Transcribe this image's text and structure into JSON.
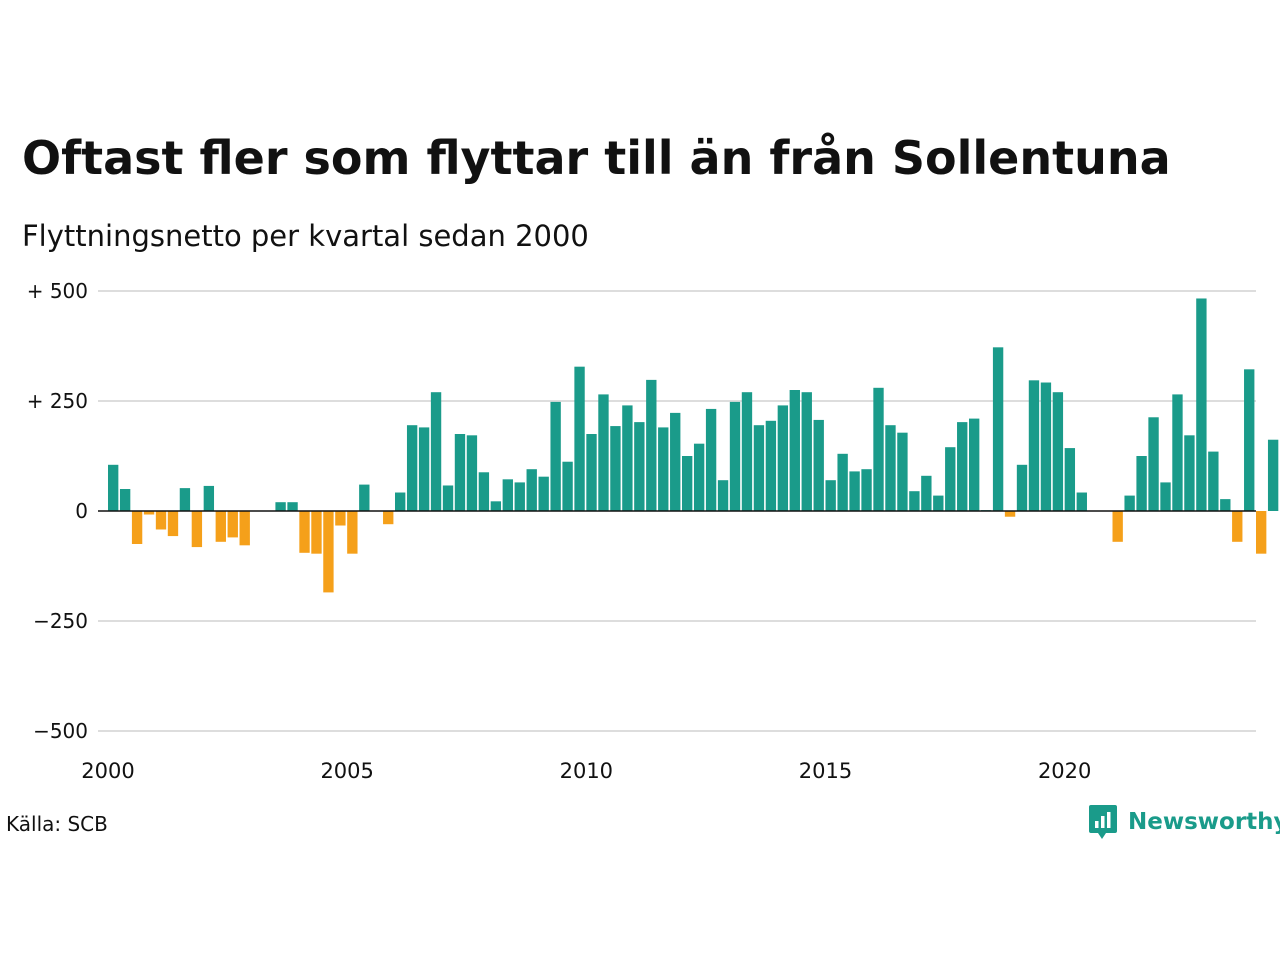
{
  "header": {
    "title": "Oftast fler som flyttar till än från Sollentuna",
    "subtitle": "Flyttningsnetto per kvartal sedan 2000"
  },
  "footer": {
    "source": "Källa: SCB",
    "brand": "Newsworthy"
  },
  "colors": {
    "positive": "#1a9b8a",
    "negative": "#f5a01a",
    "gridline": "#dddddd",
    "zero_line": "#111111",
    "text": "#111111"
  },
  "chart_data": {
    "type": "bar",
    "x_start": 2000.0,
    "x_step": 0.25,
    "xlim": [
      2000,
      2024
    ],
    "ylim": [
      -500,
      500
    ],
    "y_ticks": [
      {
        "value": 500,
        "label": "+ 500"
      },
      {
        "value": 250,
        "label": "+ 250"
      },
      {
        "value": 0,
        "label": "0"
      },
      {
        "value": -250,
        "label": "−250"
      },
      {
        "value": -500,
        "label": "−500"
      }
    ],
    "x_ticks": [
      {
        "value": 2000,
        "label": "2000"
      },
      {
        "value": 2005,
        "label": "2005"
      },
      {
        "value": 2010,
        "label": "2010"
      },
      {
        "value": 2015,
        "label": "2015"
      },
      {
        "value": 2020,
        "label": "2020"
      }
    ],
    "grid": true,
    "values": [
      105,
      50,
      -75,
      -8,
      -42,
      -57,
      52,
      -82,
      57,
      -70,
      -60,
      -78,
      0,
      0,
      20,
      20,
      -95,
      -97,
      -185,
      -33,
      -97,
      60,
      0,
      -30,
      42,
      195,
      190,
      270,
      58,
      175,
      172,
      88,
      22,
      72,
      65,
      95,
      78,
      248,
      112,
      328,
      175,
      265,
      193,
      240,
      202,
      298,
      190,
      223,
      125,
      153,
      232,
      70,
      248,
      270,
      195,
      205,
      240,
      275,
      270,
      207,
      70,
      130,
      90,
      95,
      280,
      195,
      178,
      45,
      80,
      35,
      145,
      202,
      210,
      2,
      372,
      -13,
      105,
      297,
      292,
      270,
      143,
      42,
      0,
      0,
      -70,
      35,
      125,
      213,
      65,
      265,
      172,
      483,
      135,
      27,
      -70,
      322,
      -97,
      162
    ]
  }
}
